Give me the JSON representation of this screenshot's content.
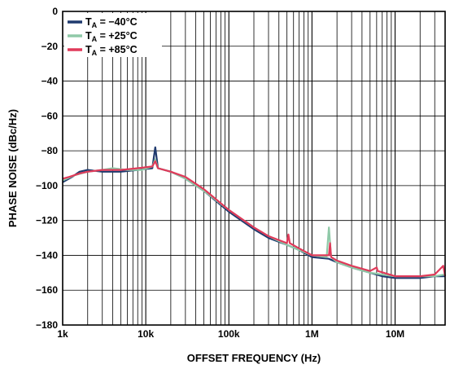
{
  "chart_data": {
    "type": "line",
    "title": "",
    "xlabel": "OFFSET FREQUENCY (Hz)",
    "ylabel": "PHASE NOISE (dBc/Hz)",
    "xscale": "log",
    "xlim": [
      1000,
      40000000
    ],
    "ylim": [
      -180,
      0
    ],
    "grid": true,
    "legend_position": "top-left",
    "x_tick_labels": [
      "1k",
      "10k",
      "100k",
      "1M",
      "10M"
    ],
    "y_tick_labels": [
      "0",
      "−20",
      "−40",
      "−60",
      "−80",
      "−100",
      "−120",
      "−140",
      "−160",
      "−180"
    ],
    "series": [
      {
        "name": "−40°C",
        "legend_main": "T",
        "legend_sub": "A",
        "legend_rest": " = −40°C",
        "color": "#1f3a6e",
        "points": [
          [
            1000,
            -98
          ],
          [
            1300,
            -95
          ],
          [
            1600,
            -92
          ],
          [
            2000,
            -91
          ],
          [
            3000,
            -92
          ],
          [
            5000,
            -92
          ],
          [
            8000,
            -91
          ],
          [
            12000,
            -90
          ],
          [
            13000,
            -78
          ],
          [
            14000,
            -90
          ],
          [
            20000,
            -92
          ],
          [
            30000,
            -96
          ],
          [
            50000,
            -103
          ],
          [
            100000,
            -115
          ],
          [
            200000,
            -125
          ],
          [
            300000,
            -130
          ],
          [
            500000,
            -134
          ],
          [
            700000,
            -137
          ],
          [
            1000000,
            -141
          ],
          [
            1600000,
            -142
          ],
          [
            2000000,
            -144
          ],
          [
            3000000,
            -147
          ],
          [
            5000000,
            -150
          ],
          [
            7000000,
            -152
          ],
          [
            10000000,
            -153
          ],
          [
            20000000,
            -153
          ],
          [
            30000000,
            -152
          ],
          [
            40000000,
            -152
          ]
        ]
      },
      {
        "name": "+25°C",
        "legend_main": "T",
        "legend_sub": "A",
        "legend_rest": " = +25°C",
        "color": "#8fc9a8",
        "points": [
          [
            1000,
            -97
          ],
          [
            1400,
            -94
          ],
          [
            2000,
            -92
          ],
          [
            3000,
            -91
          ],
          [
            4000,
            -90
          ],
          [
            6000,
            -91
          ],
          [
            9000,
            -91
          ],
          [
            12000,
            -89
          ],
          [
            13000,
            -85
          ],
          [
            14000,
            -90
          ],
          [
            20000,
            -92
          ],
          [
            30000,
            -96
          ],
          [
            50000,
            -103
          ],
          [
            100000,
            -114
          ],
          [
            200000,
            -124
          ],
          [
            300000,
            -129
          ],
          [
            500000,
            -134
          ],
          [
            700000,
            -137
          ],
          [
            1000000,
            -140
          ],
          [
            1500000,
            -141
          ],
          [
            1600000,
            -124
          ],
          [
            1700000,
            -141
          ],
          [
            2000000,
            -144
          ],
          [
            3000000,
            -147
          ],
          [
            5000000,
            -150
          ],
          [
            7000000,
            -151
          ],
          [
            10000000,
            -152
          ],
          [
            20000000,
            -152
          ],
          [
            30000000,
            -152
          ],
          [
            40000000,
            -151
          ]
        ]
      },
      {
        "name": "+85°C",
        "legend_main": "T",
        "legend_sub": "A",
        "legend_rest": " = +85°C",
        "color": "#e03a5a",
        "points": [
          [
            1000,
            -96
          ],
          [
            1200,
            -95
          ],
          [
            1600,
            -93
          ],
          [
            2000,
            -92
          ],
          [
            3000,
            -91
          ],
          [
            5000,
            -91
          ],
          [
            8000,
            -90
          ],
          [
            12000,
            -89
          ],
          [
            13000,
            -86
          ],
          [
            14000,
            -90
          ],
          [
            20000,
            -92
          ],
          [
            30000,
            -95
          ],
          [
            50000,
            -102
          ],
          [
            100000,
            -114
          ],
          [
            200000,
            -124
          ],
          [
            300000,
            -129
          ],
          [
            500000,
            -133
          ],
          [
            520000,
            -128
          ],
          [
            540000,
            -133
          ],
          [
            700000,
            -136
          ],
          [
            1000000,
            -140
          ],
          [
            1600000,
            -140
          ],
          [
            1650000,
            -133
          ],
          [
            1700000,
            -141
          ],
          [
            2000000,
            -143
          ],
          [
            3000000,
            -146
          ],
          [
            5000000,
            -149
          ],
          [
            6000000,
            -147
          ],
          [
            6200000,
            -149
          ],
          [
            10000000,
            -152
          ],
          [
            20000000,
            -152
          ],
          [
            30000000,
            -151
          ],
          [
            38000000,
            -146
          ],
          [
            40000000,
            -152
          ]
        ]
      }
    ]
  }
}
